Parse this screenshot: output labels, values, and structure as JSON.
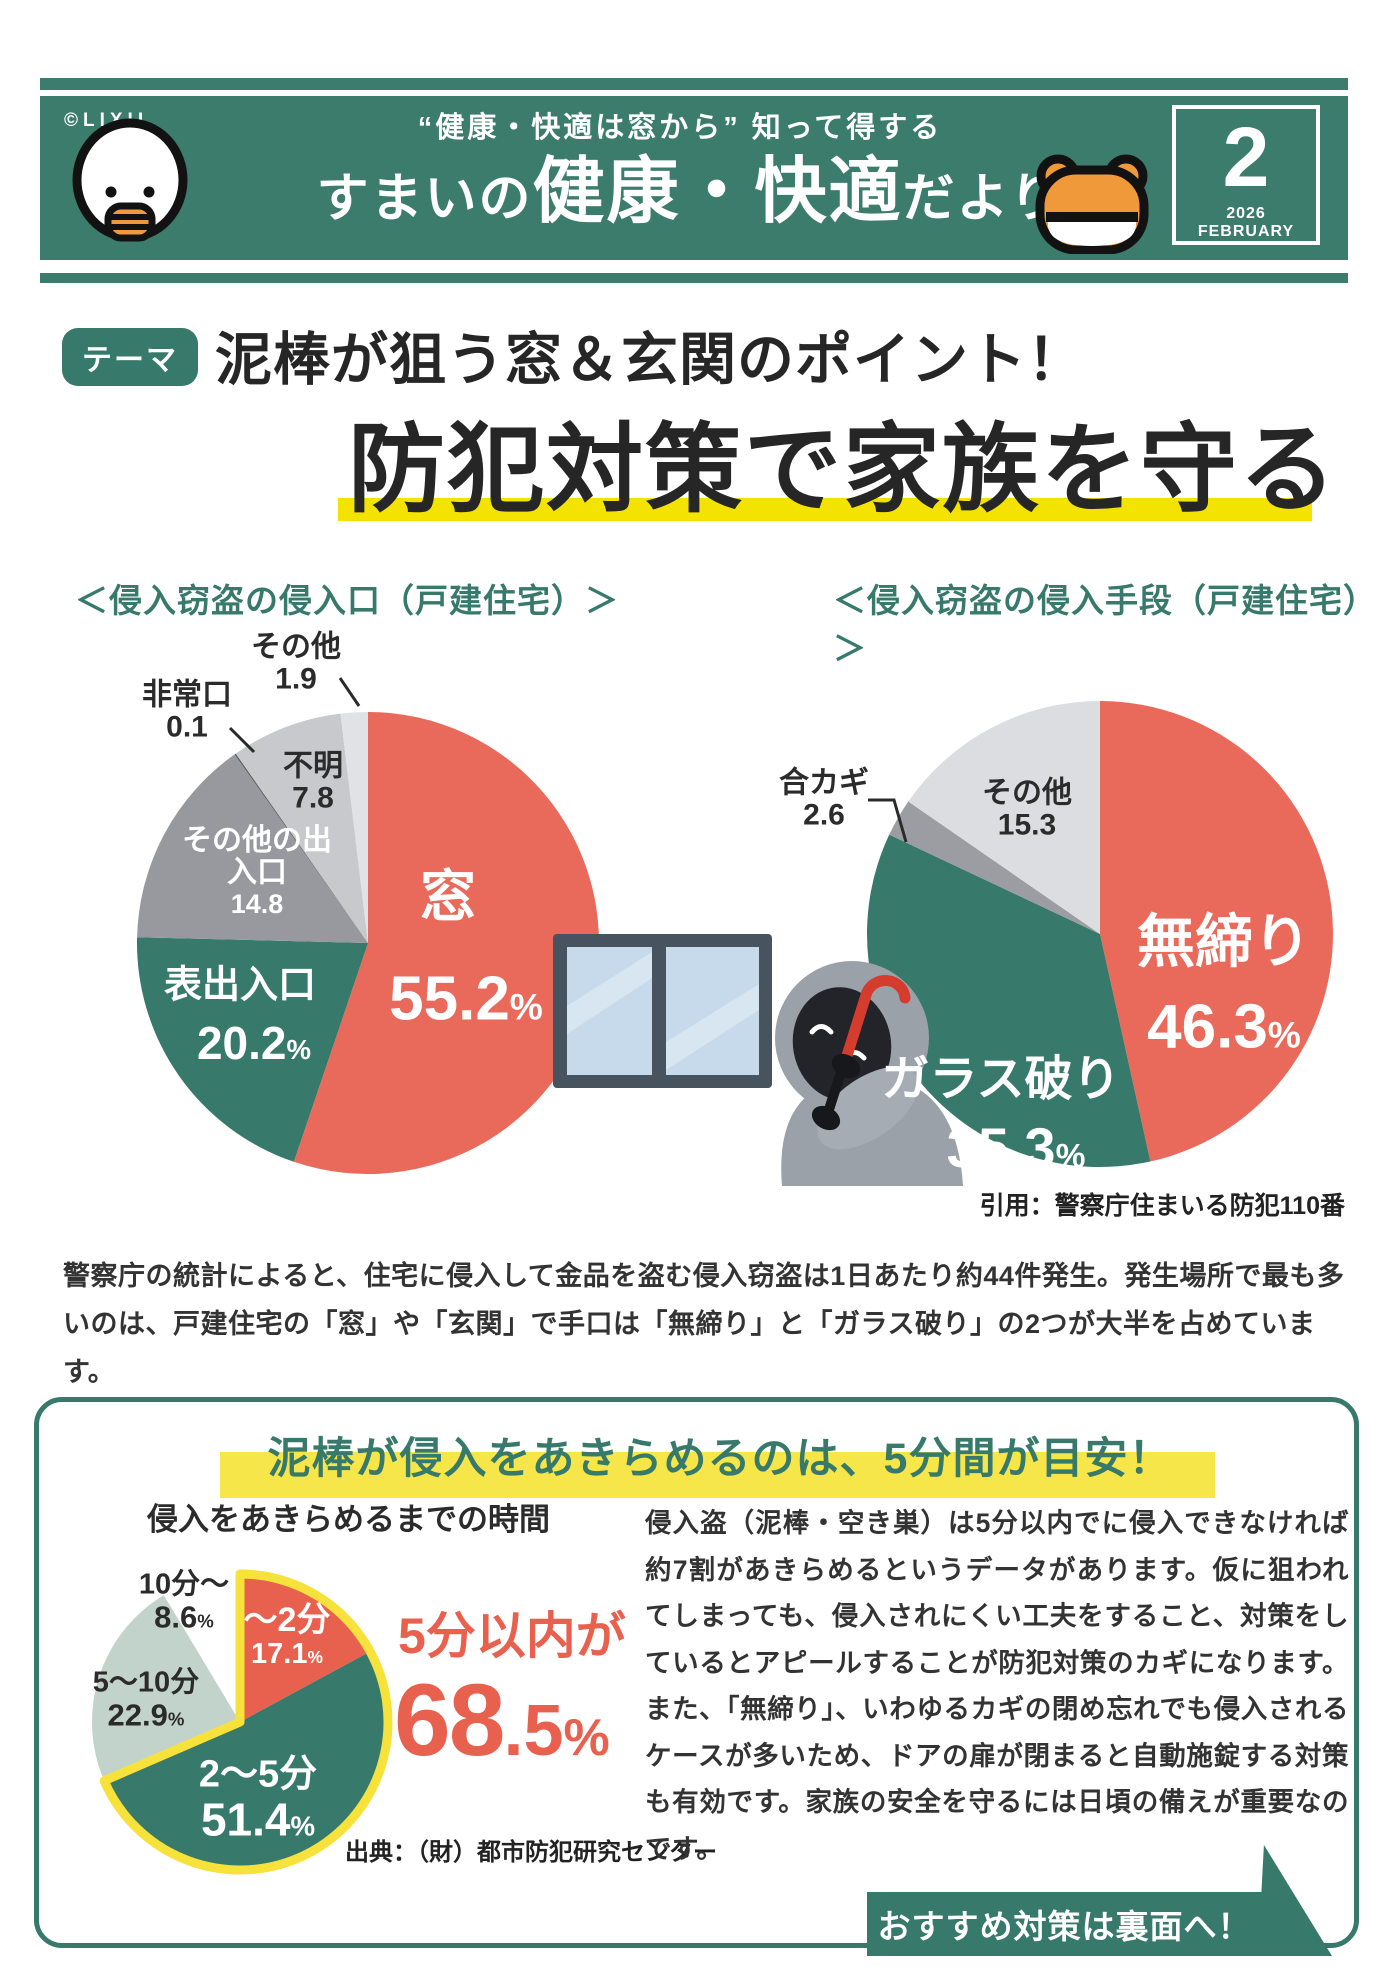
{
  "colors": {
    "teal": "#3c7c6d",
    "pie_teal": "#37796a",
    "coral": "#e96a5b",
    "red_text": "#e8614f",
    "underline_yellow": "#f4e300",
    "marker_yellow": "#f7e64a",
    "pie_outline_yellow": "#f7e13b"
  },
  "header": {
    "copyright": "©LIXIL",
    "tagline": "“健康・快適は窓から” 知って得する",
    "title_prefix": "すまいの",
    "title_main": "健康・快適",
    "title_suffix": "だより",
    "issue_number": "2",
    "issue_date": "2026 FEBRUARY"
  },
  "theme": {
    "badge": "テーマ",
    "heading_line1": "泥棒が狙う窓＆玄関のポイント！",
    "heading_line2": "防犯対策で家族を守る"
  },
  "citation": "引用：警察庁住まいる防犯110番",
  "intro": "警察庁の統計によると、住宅に侵入して金品を盗む侵入窃盗は1日あたり約44件発生。発生場所で最も多いのは、戸建住宅の「窓」や「玄関」で手口は「無締り」と「ガラス破り」の2つが大半を占めています。",
  "panel": {
    "title": "泥棒が侵入をあきらめるのは、5分間が目安！",
    "callout_label": "5分以内が",
    "callout_value_int": "68",
    "callout_value_dec": ".5",
    "callout_unit": "%",
    "source": "出典：（財）都市防犯研究センター",
    "body": "侵入盗（泥棒・空き巣）は5分以内でに侵入できなければ約7割があきらめるというデータがあります。仮に狙われてしまっても、侵入されにくい工夫をすること、対策をしているとアピールすることが防犯対策のカギになります。また、「無締り」、いわゆるカギの閉め忘れでも侵入されるケースが多いため、ドアの扉が閉まると自動施錠する対策も有効です。家族の安全を守るには日頃の備えが重要なのです。"
  },
  "footer_banner": "おすすめ対策は裏面へ！",
  "chart_data": [
    {
      "type": "pie",
      "title": "＜侵入窃盗の侵入口（戸建住宅）＞",
      "unit": "%",
      "legend_position": "inside",
      "slices": [
        {
          "label": "窓",
          "value": 55.2,
          "color": "#e96a5b"
        },
        {
          "label": "表出入口",
          "value": 20.2,
          "color": "#37796a"
        },
        {
          "label": "その他の出入口",
          "value": 14.8,
          "color": "#97999f"
        },
        {
          "label": "非常口",
          "value": 0.1,
          "color": "#5a5d63"
        },
        {
          "label": "不明",
          "value": 7.8,
          "color": "#c7c9cd"
        },
        {
          "label": "その他",
          "value": 1.9,
          "color": "#e1e2e5"
        }
      ]
    },
    {
      "type": "pie",
      "title": "＜侵入窃盗の侵入手段（戸建住宅）＞",
      "unit": "%",
      "legend_position": "inside",
      "slices": [
        {
          "label": "無締り",
          "value": 46.3,
          "color": "#e96a5b"
        },
        {
          "label": "ガラス破り",
          "value": 35.3,
          "color": "#37796a"
        },
        {
          "label": "合カギ",
          "value": 2.6,
          "color": "#9b9da3"
        },
        {
          "label": "その他",
          "value": 15.3,
          "color": "#dcdde0"
        }
      ]
    },
    {
      "type": "pie",
      "title": "侵入をあきらめるまでの時間",
      "unit": "%",
      "legend_position": "inside",
      "highlight": {
        "slice_indexes": [
          0,
          1
        ],
        "total_label": "5分以内が",
        "total_value": 68.5
      },
      "slices": [
        {
          "label": "～2分",
          "value": 17.1,
          "color": "#e8614f"
        },
        {
          "label": "2～5分",
          "value": 51.4,
          "color": "#37796a"
        },
        {
          "label": "5～10分",
          "value": 22.9,
          "color": "#c2d3cb"
        },
        {
          "label": "10分～",
          "value": 8.6,
          "color": "#ffffff"
        }
      ]
    }
  ]
}
